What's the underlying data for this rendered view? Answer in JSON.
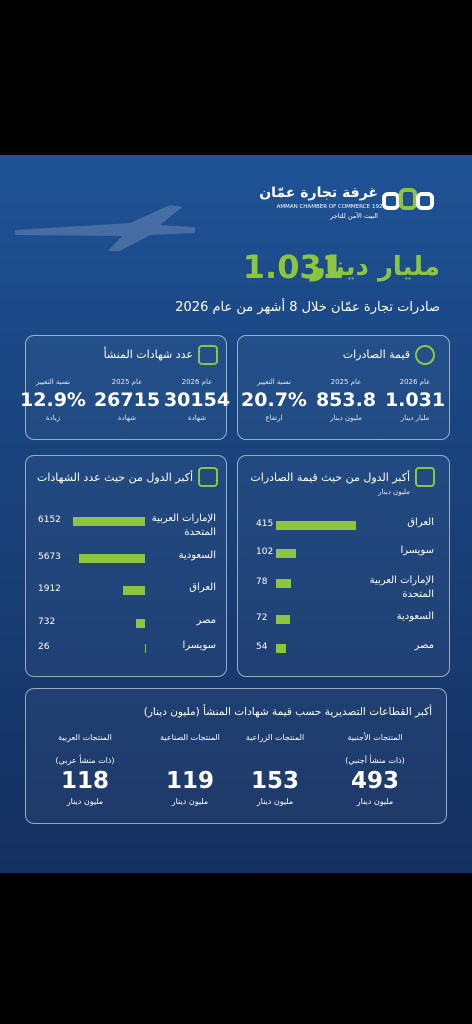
{
  "header": {
    "org_ar": "غرفة تجارة عمّان",
    "org_en": "AMMAN CHAMBER OF COMMERCE",
    "founded": "1923",
    "tagline": "البيت الآمن للتاجر"
  },
  "headline": {
    "value": "1.031",
    "unit": "مليار دينار",
    "subtitle": "صادرات تجارة عمّان خلال 8 أشهر من عام 2026"
  },
  "export_value": {
    "title": "قيمة الصادرات",
    "columns": [
      {
        "label": "عام 2026",
        "value": "1.031",
        "unit": "مليار دينار"
      },
      {
        "label": "عام 2025",
        "value": "853.8",
        "unit": "مليون دينار"
      },
      {
        "label": "نسبة التغيير",
        "value": "20.7%",
        "unit": "ارتفاع"
      }
    ]
  },
  "certificates": {
    "title": "عدد شهادات المنشأ",
    "columns": [
      {
        "label": "عام 2026",
        "value": "30154",
        "unit": "شهادة"
      },
      {
        "label": "عام 2025",
        "value": "26715",
        "unit": "شهادة"
      },
      {
        "label": "نسبة التغيير",
        "value": "12.9%",
        "unit": "زيادة"
      }
    ]
  },
  "top_countries_by_value": {
    "title": "أكبر الدول من حيث قيمة الصادرات",
    "unit": "مليون دينار",
    "items": [
      {
        "label": "العراق",
        "value": 415
      },
      {
        "label": "سويسرا",
        "value": 102
      },
      {
        "label": "الإمارات العربية المتحدة",
        "value": 78
      },
      {
        "label": "السعودية",
        "value": 72
      },
      {
        "label": "مصر",
        "value": 54
      }
    ]
  },
  "top_countries_by_certificates": {
    "title": "أكبر الدول من حيث عدد الشهادات",
    "items": [
      {
        "label": "الإمارات العربية المتحدة",
        "value": 6152
      },
      {
        "label": "السعودية",
        "value": 5673
      },
      {
        "label": "العراق",
        "value": 1912
      },
      {
        "label": "مصر",
        "value": 732
      },
      {
        "label": "سويسرا",
        "value": 26
      }
    ]
  },
  "sectors": {
    "title": "أكبر القطاعات التصديرية حسب قيمة شهادات المنشأ (مليون دينار)",
    "items": [
      {
        "name": "المنتجات الأجنبية",
        "note": "(ذات منشأ أجنبي)",
        "value": 493,
        "unit": "مليون دينار"
      },
      {
        "name": "المنتجات الزراعية",
        "value": 153,
        "unit": "مليون دينار"
      },
      {
        "name": "المنتجات الصناعية",
        "value": 119,
        "unit": "مليون دينار"
      },
      {
        "name": "المنتجات العربية",
        "note": "(ذات منشأ عربي)",
        "value": 118,
        "unit": "مليون دينار"
      }
    ]
  }
}
